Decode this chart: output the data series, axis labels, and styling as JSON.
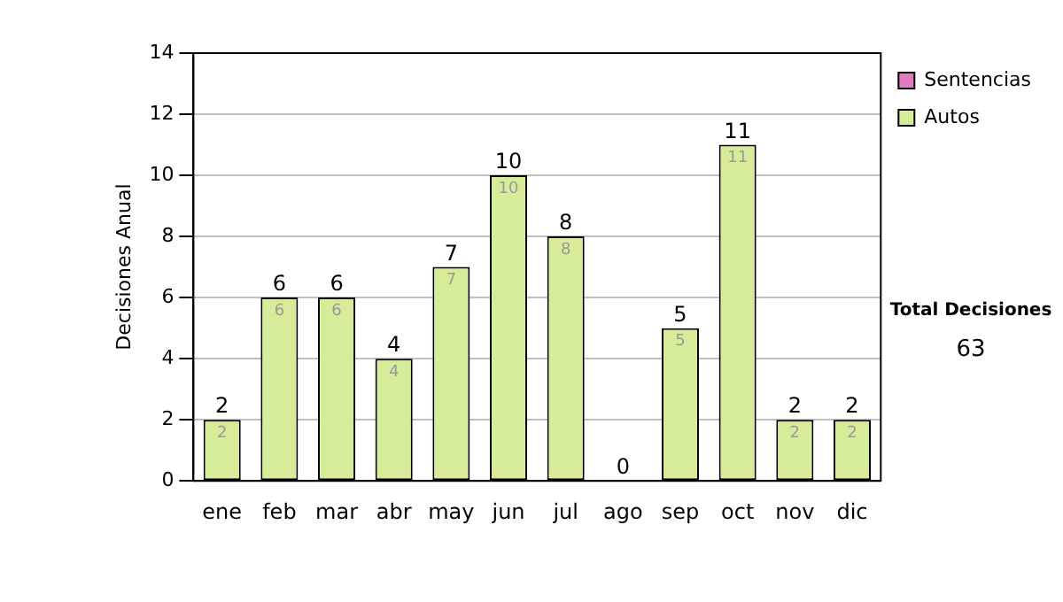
{
  "chart_data": {
    "type": "bar",
    "stacked": true,
    "ylabel": "Decisiones Anual",
    "categories": [
      "ene",
      "feb",
      "mar",
      "abr",
      "may",
      "jun",
      "jul",
      "ago",
      "sep",
      "oct",
      "nov",
      "dic"
    ],
    "series": [
      {
        "name": "Sentencias",
        "color": "#e07cc0",
        "values": [
          0,
          0,
          0,
          0,
          0,
          0,
          0,
          0,
          0,
          0,
          0,
          0
        ]
      },
      {
        "name": "Autos",
        "color": "#d6ec98",
        "values": [
          2,
          6,
          6,
          4,
          7,
          10,
          8,
          0,
          5,
          11,
          2,
          2
        ],
        "value_labels": [
          "2",
          "6",
          "6",
          "4",
          "7",
          "10",
          "8",
          null,
          "5",
          "11",
          "2",
          "2"
        ]
      }
    ],
    "totals": [
      "2",
      "6",
      "6",
      "4",
      "7",
      "10",
      "8",
      "0",
      "5",
      "11",
      "2",
      "2"
    ],
    "ylim": [
      0,
      14
    ],
    "yticks": [
      0,
      2,
      4,
      6,
      8,
      10,
      12,
      14
    ],
    "grid": "y",
    "legend": "right",
    "annotations": [
      "Total Decisiones",
      "63"
    ]
  }
}
